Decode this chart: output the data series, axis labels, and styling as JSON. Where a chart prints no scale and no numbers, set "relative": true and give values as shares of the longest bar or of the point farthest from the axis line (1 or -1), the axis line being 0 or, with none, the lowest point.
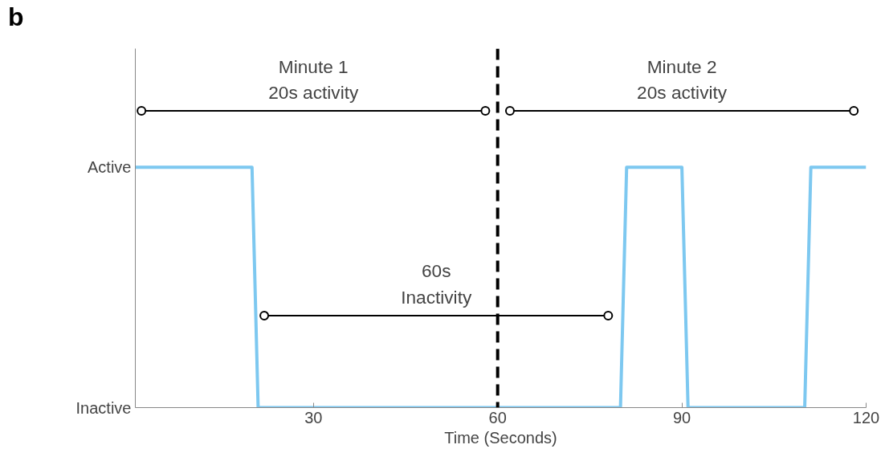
{
  "chart_data": {
    "type": "line",
    "xlabel": "Time (Seconds)",
    "relative": true,
    "xlim": [
      1,
      120
    ],
    "xticks": [
      30,
      60,
      90,
      120
    ],
    "grid": false,
    "line_style": "solid",
    "series": [
      {
        "color": "#7dc8f0",
        "x": [
          1,
          20,
          21,
          80,
          81,
          90,
          91,
          110,
          111,
          120
        ],
        "values": [
          0.81,
          0.81,
          0,
          0,
          0.81,
          0.81,
          0,
          0,
          0.81,
          0.81
        ]
      },
      {
        "color": "#000000",
        "marker": "circle",
        "x": [
          2,
          58
        ],
        "values": [
          1,
          1
        ]
      },
      {
        "color": "#000000",
        "marker": "circle",
        "x": [
          62,
          118
        ],
        "values": [
          1,
          1
        ]
      },
      {
        "color": "#000000",
        "marker": "circle",
        "x": [
          22,
          78
        ],
        "values": [
          0.31,
          0.31
        ]
      }
    ],
    "ref_lines": [
      {
        "axis": "x",
        "value": 60,
        "label": null,
        "color": "#000000",
        "line_style": "dashed"
      }
    ],
    "annotations": [
      "b",
      "Active",
      "Inactive",
      {
        "text": "Minute 1\n20s activity",
        "x": 30,
        "y": 1
      },
      {
        "text": "Minute 2\n20s activity",
        "x": 90,
        "y": 1
      },
      {
        "text": "60s\nInactivity",
        "x": 50,
        "y": 0.31
      }
    ]
  }
}
